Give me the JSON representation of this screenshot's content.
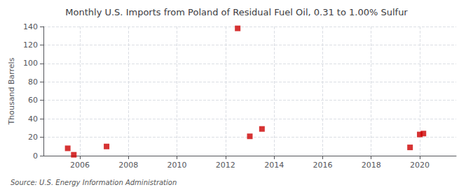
{
  "chart_data": {
    "type": "scatter",
    "title": "Monthly U.S. Imports from Poland of Residual Fuel Oil, 0.31 to 1.00% Sulfur",
    "ylabel": "Thousand Barrels",
    "source": "Source: U.S. Energy Information Administration",
    "x": [
      2005.5,
      2005.75,
      2007.1,
      2012.5,
      2013.0,
      2013.5,
      2019.6,
      2020.0,
      2020.15
    ],
    "values": [
      8,
      1,
      10,
      138,
      21,
      29,
      9,
      23,
      24
    ],
    "color": "#cc0000",
    "marker": "square",
    "xlim": [
      2004.5,
      2021.5
    ],
    "xticks": [
      2006,
      2008,
      2010,
      2012,
      2014,
      2016,
      2018,
      2020
    ],
    "ylim": [
      0,
      140
    ],
    "yticks": [
      0,
      20,
      40,
      60,
      80,
      100,
      120,
      140
    ],
    "grid": true
  }
}
